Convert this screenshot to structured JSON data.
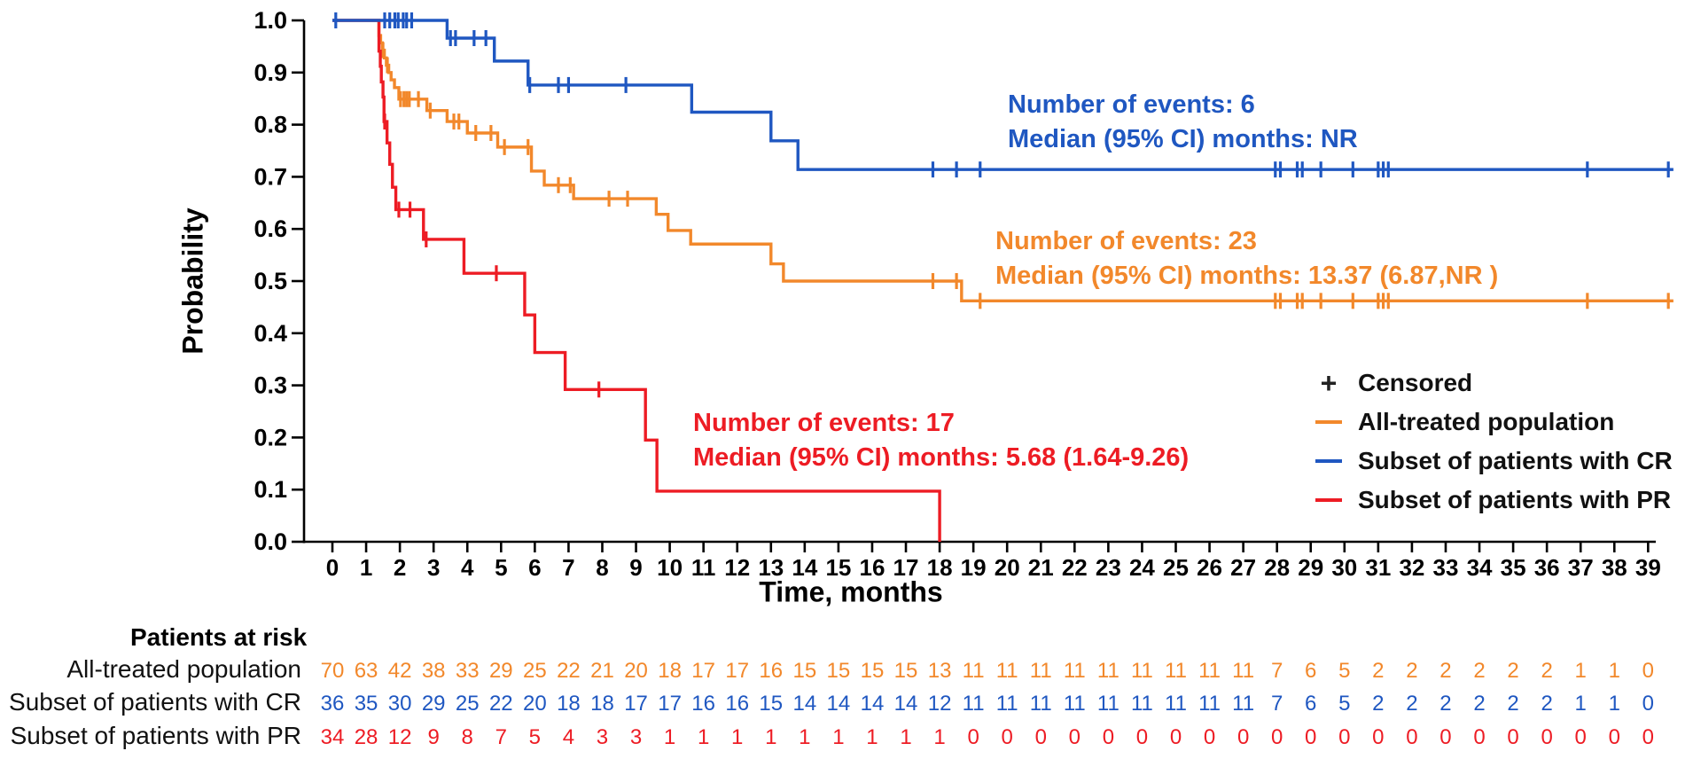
{
  "chart_data": {
    "type": "line",
    "subtype": "kaplan-meier-survival",
    "title": "",
    "xlabel": "Time, months",
    "ylabel": "Probability",
    "xlim": [
      0,
      39
    ],
    "ylim": [
      0.0,
      1.0
    ],
    "grid": false,
    "x_ticks": [
      "0",
      "1",
      "2",
      "3",
      "4",
      "5",
      "6",
      "7",
      "8",
      "9",
      "10",
      "11",
      "12",
      "13",
      "14",
      "15",
      "16",
      "17",
      "18",
      "19",
      "20",
      "21",
      "22",
      "23",
      "24",
      "25",
      "26",
      "27",
      "28",
      "29",
      "30",
      "31",
      "32",
      "33",
      "34",
      "35",
      "36",
      "37",
      "38",
      "39"
    ],
    "y_ticks": [
      "0.0",
      "0.1",
      "0.2",
      "0.3",
      "0.4",
      "0.5",
      "0.6",
      "0.7",
      "0.8",
      "0.9",
      "1.0"
    ],
    "colors": {
      "orange": "#F2882B",
      "blue": "#1F57C1",
      "red": "#ED1C24",
      "axis": "#000000",
      "legend_plus": "#222222"
    },
    "legend": {
      "position": "right-middle",
      "censored": {
        "symbol": "+",
        "label": "Censored"
      },
      "entries": [
        {
          "label": "All-treated population",
          "color_key": "orange"
        },
        {
          "label": "Subset of patients with CR",
          "color_key": "blue"
        },
        {
          "label": "Subset of patients with PR",
          "color_key": "red"
        }
      ]
    },
    "series": [
      {
        "name": "All-treated population",
        "color_key": "orange",
        "n_events": 23,
        "annotation": {
          "line1": "Number of events: 23",
          "line2": "Median (95% CI) months: 13.37 (6.87,NR )"
        },
        "start": [
          0,
          1.0
        ],
        "steps": [
          [
            1.38,
            0.971
          ],
          [
            1.43,
            0.957
          ],
          [
            1.48,
            0.943
          ],
          [
            1.54,
            0.928
          ],
          [
            1.6,
            0.914
          ],
          [
            1.67,
            0.9
          ],
          [
            1.74,
            0.886
          ],
          [
            1.84,
            0.871
          ],
          [
            1.97,
            0.849
          ],
          [
            2.8,
            0.827
          ],
          [
            3.4,
            0.806
          ],
          [
            4.0,
            0.784
          ],
          [
            4.9,
            0.757
          ],
          [
            5.9,
            0.711
          ],
          [
            6.28,
            0.684
          ],
          [
            7.15,
            0.658
          ],
          [
            9.6,
            0.628
          ],
          [
            9.95,
            0.597
          ],
          [
            10.62,
            0.571
          ],
          [
            13.0,
            0.533
          ],
          [
            13.37,
            0.5
          ],
          [
            18.65,
            0.462
          ]
        ],
        "end_time": 39.75,
        "censor_marks": [
          [
            1.5,
            0.943
          ],
          [
            1.63,
            0.914
          ],
          [
            2.02,
            0.849
          ],
          [
            2.12,
            0.849
          ],
          [
            2.2,
            0.849
          ],
          [
            2.28,
            0.849
          ],
          [
            2.55,
            0.849
          ],
          [
            2.9,
            0.827
          ],
          [
            3.6,
            0.806
          ],
          [
            3.75,
            0.806
          ],
          [
            4.25,
            0.784
          ],
          [
            4.7,
            0.784
          ],
          [
            5.1,
            0.757
          ],
          [
            5.8,
            0.757
          ],
          [
            6.7,
            0.684
          ],
          [
            7.05,
            0.684
          ],
          [
            8.2,
            0.658
          ],
          [
            8.75,
            0.658
          ],
          [
            17.8,
            0.5
          ],
          [
            18.5,
            0.5
          ],
          [
            19.2,
            0.462
          ],
          [
            27.95,
            0.462
          ],
          [
            28.1,
            0.462
          ],
          [
            28.6,
            0.462
          ],
          [
            28.75,
            0.462
          ],
          [
            29.3,
            0.462
          ],
          [
            30.25,
            0.462
          ],
          [
            31.0,
            0.462
          ],
          [
            31.15,
            0.462
          ],
          [
            31.3,
            0.462
          ],
          [
            37.2,
            0.462
          ],
          [
            39.6,
            0.462
          ]
        ]
      },
      {
        "name": "Subset of patients with CR",
        "color_key": "blue",
        "n_events": 6,
        "annotation": {
          "line1": "Number of events: 6",
          "line2": "Median (95% CI) months: NR"
        },
        "start": [
          0,
          1.0
        ],
        "steps": [
          [
            3.4,
            0.966
          ],
          [
            4.8,
            0.922
          ],
          [
            5.8,
            0.876
          ],
          [
            10.65,
            0.824
          ],
          [
            13.0,
            0.769
          ],
          [
            13.8,
            0.714
          ]
        ],
        "end_time": 39.75,
        "censor_marks": [
          [
            0.1,
            1.0
          ],
          [
            1.55,
            1.0
          ],
          [
            1.7,
            1.0
          ],
          [
            1.85,
            1.0
          ],
          [
            1.95,
            1.0
          ],
          [
            2.1,
            1.0
          ],
          [
            2.2,
            1.0
          ],
          [
            2.35,
            1.0
          ],
          [
            3.5,
            0.966
          ],
          [
            3.65,
            0.966
          ],
          [
            4.2,
            0.966
          ],
          [
            4.55,
            0.966
          ],
          [
            5.85,
            0.876
          ],
          [
            6.7,
            0.876
          ],
          [
            7.0,
            0.876
          ],
          [
            8.7,
            0.876
          ],
          [
            17.8,
            0.714
          ],
          [
            18.5,
            0.714
          ],
          [
            19.2,
            0.714
          ],
          [
            27.95,
            0.714
          ],
          [
            28.1,
            0.714
          ],
          [
            28.6,
            0.714
          ],
          [
            28.75,
            0.714
          ],
          [
            29.3,
            0.714
          ],
          [
            30.25,
            0.714
          ],
          [
            31.0,
            0.714
          ],
          [
            31.15,
            0.714
          ],
          [
            31.3,
            0.714
          ],
          [
            37.2,
            0.714
          ],
          [
            39.6,
            0.714
          ]
        ]
      },
      {
        "name": "Subset of patients with PR",
        "color_key": "red",
        "n_events": 17,
        "annotation": {
          "line1": "Number of events: 17",
          "line2": "Median (95% CI) months: 5.68 (1.64-9.26)"
        },
        "start": [
          0,
          1.0
        ],
        "steps": [
          [
            1.38,
            0.941
          ],
          [
            1.42,
            0.912
          ],
          [
            1.45,
            0.882
          ],
          [
            1.5,
            0.853
          ],
          [
            1.53,
            0.806
          ],
          [
            1.62,
            0.765
          ],
          [
            1.7,
            0.724
          ],
          [
            1.78,
            0.68
          ],
          [
            1.88,
            0.637
          ],
          [
            2.7,
            0.58
          ],
          [
            3.9,
            0.515
          ],
          [
            5.7,
            0.435
          ],
          [
            6.0,
            0.363
          ],
          [
            6.9,
            0.292
          ],
          [
            9.28,
            0.195
          ],
          [
            9.62,
            0.097
          ],
          [
            18.0,
            0.0
          ]
        ],
        "end_time": 18.0,
        "censor_marks": [
          [
            1.55,
            0.806
          ],
          [
            1.97,
            0.637
          ],
          [
            2.3,
            0.637
          ],
          [
            2.78,
            0.58
          ],
          [
            4.86,
            0.515
          ],
          [
            7.9,
            0.292
          ]
        ]
      }
    ],
    "risk_table": {
      "header": "Patients at risk",
      "time_points": [
        0,
        1,
        2,
        3,
        4,
        5,
        6,
        7,
        8,
        9,
        10,
        11,
        12,
        13,
        14,
        15,
        16,
        17,
        18,
        19,
        20,
        21,
        22,
        23,
        24,
        25,
        26,
        27,
        28,
        29,
        30,
        31,
        32,
        33,
        34,
        35,
        36,
        37,
        38,
        39
      ],
      "rows": [
        {
          "label": "All-treated population",
          "color_key": "orange",
          "counts": [
            70,
            63,
            42,
            38,
            33,
            29,
            25,
            22,
            21,
            20,
            18,
            17,
            17,
            16,
            15,
            15,
            15,
            15,
            13,
            11,
            11,
            11,
            11,
            11,
            11,
            11,
            11,
            11,
            7,
            6,
            5,
            2,
            2,
            2,
            2,
            2,
            2,
            1,
            1,
            0
          ]
        },
        {
          "label": "Subset of patients with CR",
          "color_key": "blue",
          "counts": [
            36,
            35,
            30,
            29,
            25,
            22,
            20,
            18,
            18,
            17,
            17,
            16,
            16,
            15,
            14,
            14,
            14,
            14,
            12,
            11,
            11,
            11,
            11,
            11,
            11,
            11,
            11,
            11,
            7,
            6,
            5,
            2,
            2,
            2,
            2,
            2,
            2,
            1,
            1,
            0
          ]
        },
        {
          "label": "Subset of patients with PR",
          "color_key": "red",
          "counts": [
            34,
            28,
            12,
            9,
            8,
            7,
            5,
            4,
            3,
            3,
            1,
            1,
            1,
            1,
            1,
            1,
            1,
            1,
            1,
            0,
            0,
            0,
            0,
            0,
            0,
            0,
            0,
            0,
            0,
            0,
            0,
            0,
            0,
            0,
            0,
            0,
            0,
            0,
            0,
            0
          ]
        }
      ]
    }
  }
}
